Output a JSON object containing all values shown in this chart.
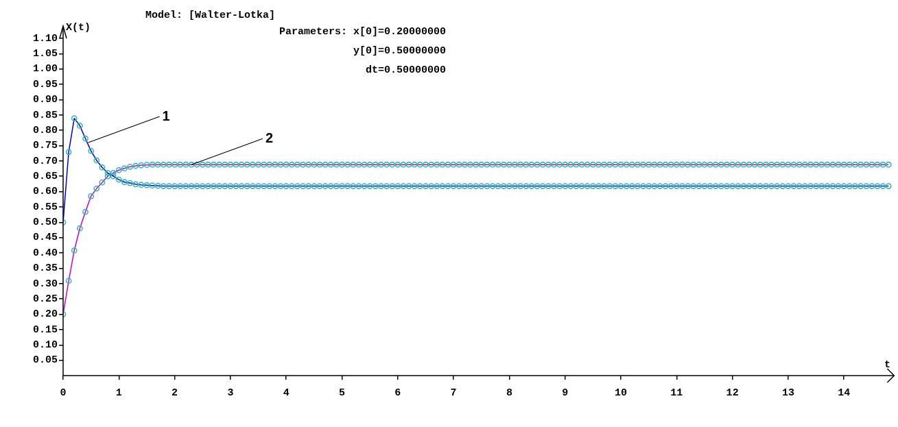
{
  "chart_data": {
    "type": "line",
    "title": "Model: [Walter-Lotka]",
    "subtitle": "Parameters: x[0]=0.20000000\ny[0]=0.50000000\ndt=0.50000000",
    "xlabel": "t",
    "ylabel": "X(t)",
    "x": [
      0,
      0.1,
      0.2,
      0.3,
      0.4,
      0.5,
      0.6,
      0.7,
      0.8,
      0.9,
      1,
      1.1,
      1.2,
      1.3,
      1.4,
      1.5,
      1.6,
      1.7,
      1.8,
      1.9,
      2,
      2.1,
      2.2,
      2.3,
      2.4,
      2.5,
      2.6,
      2.7,
      2.8,
      2.9,
      3,
      3.1,
      3.2,
      3.3,
      3.4,
      3.5,
      3.6,
      3.7,
      3.8,
      3.9,
      4,
      4.1,
      4.2,
      4.3,
      4.4,
      4.5,
      4.6,
      4.7,
      4.8,
      4.9,
      5,
      5.1,
      5.2,
      5.3,
      5.4,
      5.5,
      5.6,
      5.7,
      5.8,
      5.9,
      6,
      6.1,
      6.2,
      6.3,
      6.4,
      6.5,
      6.6,
      6.7,
      6.8,
      6.9,
      7,
      7.1,
      7.2,
      7.3,
      7.4,
      7.5,
      7.6,
      7.7,
      7.8,
      7.9,
      8,
      8.1,
      8.2,
      8.3,
      8.4,
      8.5,
      8.6,
      8.7,
      8.8,
      8.9,
      9,
      9.1,
      9.2,
      9.3,
      9.4,
      9.5,
      9.6,
      9.7,
      9.8,
      9.9,
      10,
      10.1,
      10.2,
      10.3,
      10.4,
      10.5,
      10.6,
      10.7,
      10.8,
      10.9,
      11,
      11.1,
      11.2,
      11.3,
      11.4,
      11.5,
      11.6,
      11.7,
      11.8,
      11.9,
      12,
      12.1,
      12.2,
      12.3,
      12.4,
      12.5,
      12.6,
      12.7,
      12.8,
      12.9,
      13,
      13.1,
      13.2,
      13.3,
      13.4,
      13.5,
      13.6,
      13.7,
      13.8,
      13.9,
      14,
      14.1,
      14.2,
      14.3,
      14.4,
      14.5,
      14.6,
      14.7,
      14.8
    ],
    "series": [
      {
        "color": "#0000cc",
        "values": [
          0.5,
          0.729,
          0.839,
          0.815,
          0.773,
          0.733,
          0.702,
          0.679,
          0.661,
          0.65,
          0.639,
          0.631,
          0.628,
          0.624,
          0.622,
          0.621,
          0.62,
          0.619,
          0.618,
          0.618,
          0.618,
          0.618,
          0.618,
          0.618,
          0.618,
          0.618,
          0.618,
          0.618,
          0.618,
          0.618,
          0.618,
          0.618,
          0.618,
          0.618,
          0.618,
          0.618,
          0.618,
          0.618,
          0.618,
          0.618,
          0.618,
          0.618,
          0.618,
          0.618,
          0.618,
          0.618,
          0.618,
          0.618,
          0.618,
          0.618,
          0.618,
          0.618,
          0.618,
          0.618,
          0.618,
          0.618,
          0.618,
          0.618,
          0.618,
          0.618,
          0.618,
          0.618,
          0.618,
          0.618,
          0.618,
          0.618,
          0.618,
          0.618,
          0.618,
          0.618,
          0.618,
          0.618,
          0.618,
          0.618,
          0.618,
          0.618,
          0.618,
          0.618,
          0.618,
          0.618,
          0.618,
          0.618,
          0.618,
          0.618,
          0.618,
          0.618,
          0.618,
          0.618,
          0.618,
          0.618,
          0.618,
          0.618,
          0.618,
          0.618,
          0.618,
          0.618,
          0.618,
          0.618,
          0.618,
          0.618,
          0.618,
          0.618,
          0.618,
          0.618,
          0.618,
          0.618,
          0.618,
          0.618,
          0.618,
          0.618,
          0.618,
          0.618,
          0.618,
          0.618,
          0.618,
          0.618,
          0.618,
          0.618,
          0.618,
          0.618,
          0.618,
          0.618,
          0.618,
          0.618,
          0.618,
          0.618,
          0.618,
          0.618,
          0.618,
          0.618,
          0.618,
          0.618,
          0.618,
          0.618,
          0.618,
          0.618,
          0.618,
          0.618,
          0.618,
          0.618,
          0.618,
          0.618,
          0.618,
          0.618,
          0.618,
          0.618,
          0.618,
          0.618,
          0.618
        ]
      },
      {
        "color": "#cc00cc",
        "values": [
          0.2,
          0.309,
          0.408,
          0.48,
          0.534,
          0.585,
          0.61,
          0.63,
          0.65,
          0.661,
          0.67,
          0.676,
          0.681,
          0.684,
          0.686,
          0.687,
          0.688,
          0.688,
          0.688,
          0.688,
          0.688,
          0.688,
          0.688,
          0.688,
          0.688,
          0.688,
          0.688,
          0.688,
          0.688,
          0.688,
          0.688,
          0.688,
          0.688,
          0.688,
          0.688,
          0.688,
          0.688,
          0.688,
          0.688,
          0.688,
          0.688,
          0.688,
          0.688,
          0.688,
          0.688,
          0.688,
          0.688,
          0.688,
          0.688,
          0.688,
          0.688,
          0.688,
          0.688,
          0.688,
          0.688,
          0.688,
          0.688,
          0.688,
          0.688,
          0.688,
          0.688,
          0.688,
          0.688,
          0.688,
          0.688,
          0.688,
          0.688,
          0.688,
          0.688,
          0.688,
          0.688,
          0.688,
          0.688,
          0.688,
          0.688,
          0.688,
          0.688,
          0.688,
          0.688,
          0.688,
          0.688,
          0.688,
          0.688,
          0.688,
          0.688,
          0.688,
          0.688,
          0.688,
          0.688,
          0.688,
          0.688,
          0.688,
          0.688,
          0.688,
          0.688,
          0.688,
          0.688,
          0.688,
          0.688,
          0.688,
          0.688,
          0.688,
          0.688,
          0.688,
          0.688,
          0.688,
          0.688,
          0.688,
          0.688,
          0.688,
          0.688,
          0.688,
          0.688,
          0.688,
          0.688,
          0.688,
          0.688,
          0.688,
          0.688,
          0.688,
          0.688,
          0.688,
          0.688,
          0.688,
          0.688,
          0.688,
          0.688,
          0.688,
          0.688,
          0.688,
          0.688,
          0.688,
          0.688,
          0.688,
          0.688,
          0.688,
          0.688,
          0.688,
          0.688,
          0.688,
          0.688,
          0.688,
          0.688,
          0.688,
          0.688,
          0.688,
          0.688,
          0.688,
          0.688
        ]
      }
    ],
    "annotations": [
      {
        "text": "1",
        "x": 0.45,
        "y": 0.76
      },
      {
        "text": "2",
        "x": 2.3,
        "y": 0.688
      }
    ],
    "xlim": [
      0,
      14.9
    ],
    "xticks": [
      0,
      1,
      2,
      3,
      4,
      5,
      6,
      7,
      8,
      9,
      10,
      11,
      12,
      13,
      14
    ],
    "ylim": [
      0,
      1.14
    ],
    "yticks": [
      {
        "value": 0.05,
        "label": "0.05"
      },
      {
        "value": 0.1,
        "label": "0.10"
      },
      {
        "value": 0.15,
        "label": "0.15"
      },
      {
        "value": 0.2,
        "label": "0.20"
      },
      {
        "value": 0.25,
        "label": "0.25"
      },
      {
        "value": 0.3,
        "label": "0.30"
      },
      {
        "value": 0.35,
        "label": "0.35"
      },
      {
        "value": 0.4,
        "label": "0.40"
      },
      {
        "value": 0.45,
        "label": "0.45"
      },
      {
        "value": 0.5,
        "label": "0.50"
      },
      {
        "value": 0.55,
        "label": "0.55"
      },
      {
        "value": 0.6,
        "label": "0.60"
      },
      {
        "value": 0.65,
        "label": "0.65"
      },
      {
        "value": 0.7,
        "label": "0.70"
      },
      {
        "value": 0.75,
        "label": "0.75"
      },
      {
        "value": 0.8,
        "label": "0.80"
      },
      {
        "value": 0.85,
        "label": "0.85"
      },
      {
        "value": 0.9,
        "label": "0.90"
      },
      {
        "value": 0.95,
        "label": "0.95"
      },
      {
        "value": 1,
        "label": "1.00"
      },
      {
        "value": 1.05,
        "label": "1.05"
      },
      {
        "value": 1.1,
        "label": "1.10"
      }
    ],
    "grid": false,
    "legend": false,
    "marker": "circle"
  }
}
